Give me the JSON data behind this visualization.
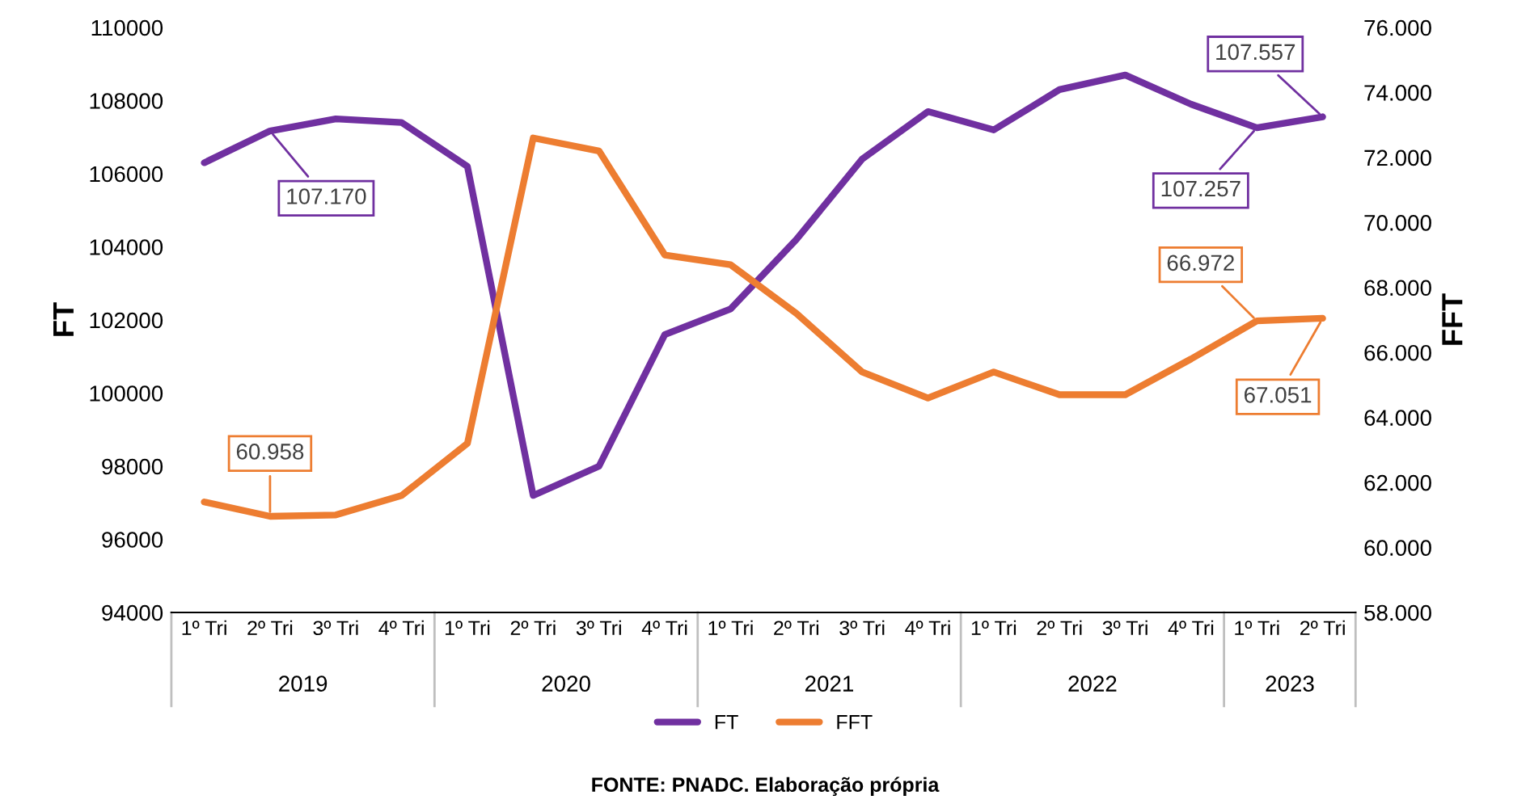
{
  "chart_data": {
    "type": "line",
    "categories": [
      "1º Tri",
      "2º Tri",
      "3º Tri",
      "4º Tri",
      "1º Tri",
      "2º Tri",
      "3º Tri",
      "4º Tri",
      "1º Tri",
      "2º Tri",
      "3º Tri",
      "4º Tri",
      "1º Tri",
      "2º Tri",
      "3º Tri",
      "4º Tri",
      "1º Tri",
      "2º Tri"
    ],
    "ylabel": "FT",
    "y2label": "FFT",
    "series": [
      {
        "name": "FT",
        "color": "#7030a0",
        "values": [
          106300,
          107170,
          107500,
          107400,
          106200,
          97200,
          98000,
          101600,
          102300,
          104200,
          106400,
          107700,
          107200,
          108300,
          108700,
          107900,
          107257,
          107557
        ],
        "value_labels": [
          null,
          "107.170",
          null,
          null,
          null,
          null,
          null,
          null,
          null,
          null,
          null,
          null,
          null,
          null,
          null,
          null,
          "107.257",
          "107.557"
        ]
      },
      {
        "name": "FFT",
        "color": "#ed7d31",
        "axis": "y2",
        "values": [
          61400,
          60958,
          61000,
          61600,
          63200,
          72600,
          72200,
          69000,
          68700,
          67200,
          65400,
          64600,
          65400,
          64700,
          64700,
          65800,
          66972,
          67051
        ],
        "value_labels": [
          null,
          "60.958",
          null,
          null,
          null,
          null,
          null,
          null,
          null,
          null,
          null,
          null,
          null,
          null,
          null,
          null,
          "66.972",
          "67.051"
        ]
      }
    ],
    "ylim": [
      94000,
      110000
    ],
    "yticks": [
      94000,
      96000,
      98000,
      100000,
      102000,
      104000,
      106000,
      108000,
      110000
    ],
    "y2lim": [
      58000,
      76000
    ],
    "y2ticks": [
      {
        "value": 58000,
        "label": "58.000"
      },
      {
        "value": 60000,
        "label": "60.000"
      },
      {
        "value": 62000,
        "label": "62.000"
      },
      {
        "value": 64000,
        "label": "64.000"
      },
      {
        "value": 66000,
        "label": "66.000"
      },
      {
        "value": 68000,
        "label": "68.000"
      },
      {
        "value": 70000,
        "label": "70.000"
      },
      {
        "value": 72000,
        "label": "72.000"
      },
      {
        "value": 74000,
        "label": "74.000"
      },
      {
        "value": 76000,
        "label": "76.000"
      }
    ],
    "annotations": [
      "2019",
      "2020",
      "2021",
      "2022",
      "2023",
      "FONTE: PNADC. Elaboração própria"
    ],
    "legend": "bottom",
    "grid": false,
    "marker": "none",
    "line_style": "solid"
  }
}
